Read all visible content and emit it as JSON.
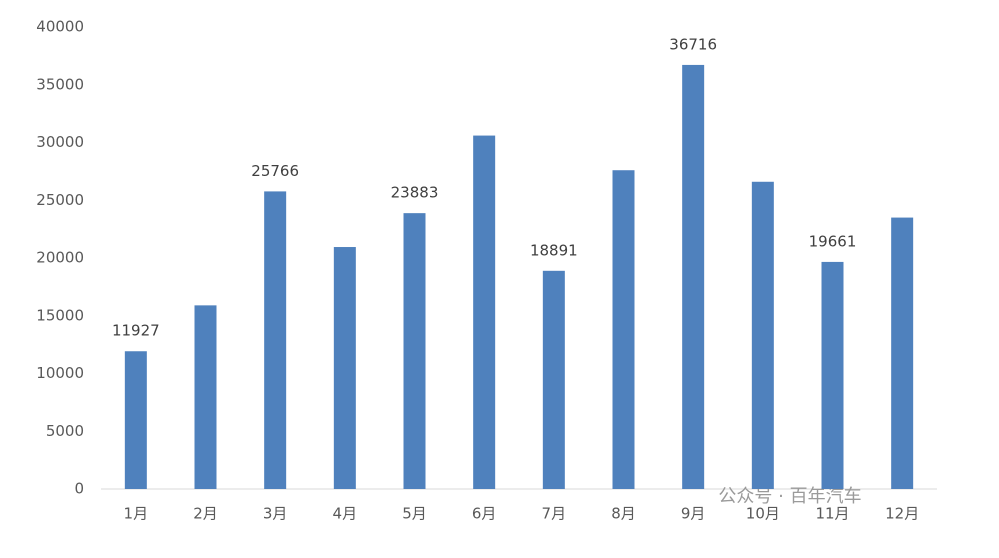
{
  "chart_data": {
    "type": "bar",
    "categories": [
      "1月",
      "2月",
      "3月",
      "4月",
      "5月",
      "6月",
      "7月",
      "8月",
      "9月",
      "10月",
      "11月",
      "12月"
    ],
    "values": [
      11927,
      15900,
      25766,
      20950,
      23883,
      30600,
      18891,
      27600,
      36716,
      26600,
      19661,
      23500
    ],
    "value_labels": [
      11927,
      null,
      25766,
      null,
      23883,
      null,
      18891,
      null,
      36716,
      null,
      19661,
      null
    ],
    "color": "#4f81bd",
    "ylim": [
      0,
      40000
    ],
    "yticks": [
      0,
      5000,
      10000,
      15000,
      20000,
      25000,
      30000,
      35000,
      40000
    ],
    "grid": false,
    "watermark": "公众号 · 百年汽车"
  }
}
